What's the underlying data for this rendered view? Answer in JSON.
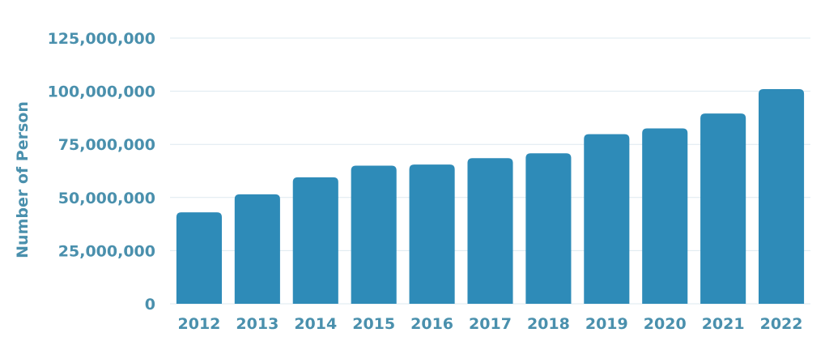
{
  "chart_data": {
    "type": "bar",
    "title": "",
    "xlabel": "",
    "ylabel": "Number of Person",
    "categories": [
      "2012",
      "2013",
      "2014",
      "2015",
      "2016",
      "2017",
      "2018",
      "2019",
      "2020",
      "2021",
      "2022"
    ],
    "values": [
      43000000,
      51500000,
      59500000,
      65000000,
      65500000,
      68500000,
      70800000,
      79800000,
      82500000,
      89500000,
      101000000
    ],
    "ylim": [
      0,
      125000000
    ],
    "yticks": [
      0,
      25000000,
      50000000,
      75000000,
      100000000,
      125000000
    ],
    "ytick_labels": [
      "0",
      "25,000,000",
      "50,000,000",
      "75,000,000",
      "100,000,000",
      "125,000,000"
    ],
    "grid": true,
    "legend": "none",
    "colors": {
      "bar": "#2e8bb8",
      "text": "#4a90ad",
      "grid": "#dde9ef"
    }
  }
}
